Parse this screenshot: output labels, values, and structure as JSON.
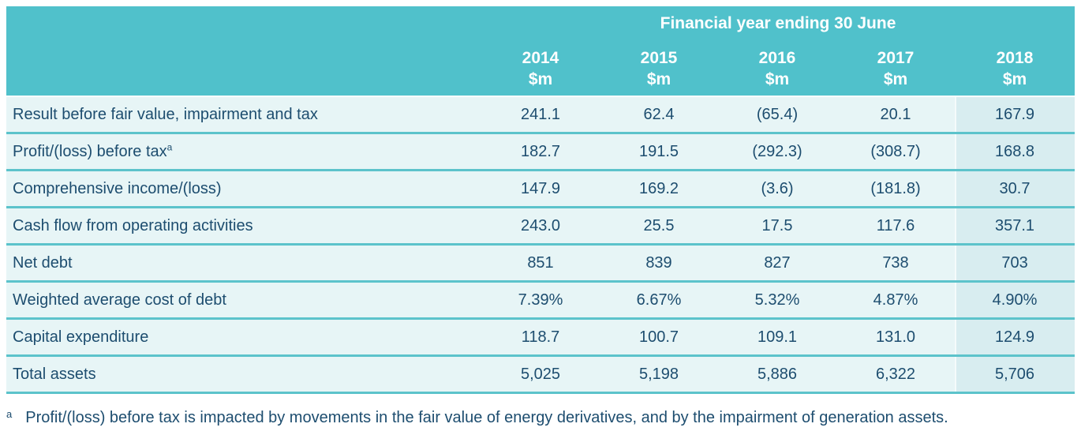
{
  "table": {
    "header": {
      "group_title": "Financial year ending 30 June",
      "unit": "$m",
      "years": [
        "2014",
        "2015",
        "2016",
        "2017",
        "2018"
      ]
    },
    "rows": [
      {
        "label": "Result before fair value, impairment and tax",
        "values": [
          "241.1",
          "62.4",
          "(65.4)",
          "20.1",
          "167.9"
        ]
      },
      {
        "label": "Profit/(loss) before tax",
        "superscript": "a",
        "values": [
          "182.7",
          "191.5",
          "(292.3)",
          "(308.7)",
          "168.8"
        ]
      },
      {
        "label": "Comprehensive income/(loss)",
        "values": [
          "147.9",
          "169.2",
          "(3.6)",
          "(181.8)",
          "30.7"
        ]
      },
      {
        "label": "Cash flow from operating activities",
        "values": [
          "243.0",
          "25.5",
          "17.5",
          "117.6",
          "357.1"
        ]
      },
      {
        "label": "Net debt",
        "values": [
          "851",
          "839",
          "827",
          "738",
          "703"
        ]
      },
      {
        "label": "Weighted average cost of debt",
        "values": [
          "7.39%",
          "6.67%",
          "5.32%",
          "4.87%",
          "4.90%"
        ]
      },
      {
        "label": "Capital expenditure",
        "values": [
          "118.7",
          "100.7",
          "109.1",
          "131.0",
          "124.9"
        ]
      },
      {
        "label": "Total assets",
        "values": [
          "5,025",
          "5,198",
          "5,886",
          "6,322",
          "5,706"
        ]
      }
    ],
    "footnote": {
      "marker": "a",
      "text": "Profit/(loss) before tax is impacted by movements in the fair value of energy derivatives, and by the impairment of generation assets."
    }
  },
  "colors": {
    "header_bg": "#50c1cb",
    "row_bg": "#e7f5f6",
    "highlight_column_bg": "#d8edf0",
    "divider": "#5cc3cb",
    "header_text": "#ffffff",
    "body_text": "#1d4d6f"
  },
  "chart_data": {
    "type": "table",
    "title": "Financial year ending 30 June",
    "unit": "$m",
    "categories": [
      "2014",
      "2015",
      "2016",
      "2017",
      "2018"
    ],
    "highlighted_column": "2018",
    "series": [
      {
        "name": "Result before fair value, impairment and tax",
        "values": [
          241.1,
          62.4,
          -65.4,
          20.1,
          167.9
        ]
      },
      {
        "name": "Profit/(loss) before tax",
        "values": [
          182.7,
          191.5,
          -292.3,
          -308.7,
          168.8
        ]
      },
      {
        "name": "Comprehensive income/(loss)",
        "values": [
          147.9,
          169.2,
          -3.6,
          -181.8,
          30.7
        ]
      },
      {
        "name": "Cash flow from operating activities",
        "values": [
          243.0,
          25.5,
          17.5,
          117.6,
          357.1
        ]
      },
      {
        "name": "Net debt",
        "values": [
          851,
          839,
          827,
          738,
          703
        ]
      },
      {
        "name": "Weighted average cost of debt (%)",
        "values": [
          7.39,
          6.67,
          5.32,
          4.87,
          4.9
        ]
      },
      {
        "name": "Capital expenditure",
        "values": [
          118.7,
          100.7,
          109.1,
          131.0,
          124.9
        ]
      },
      {
        "name": "Total assets",
        "values": [
          5025,
          5198,
          5886,
          6322,
          5706
        ]
      }
    ],
    "footnote": "a: Profit/(loss) before tax is impacted by movements in the fair value of energy derivatives, and by the impairment of generation assets."
  }
}
